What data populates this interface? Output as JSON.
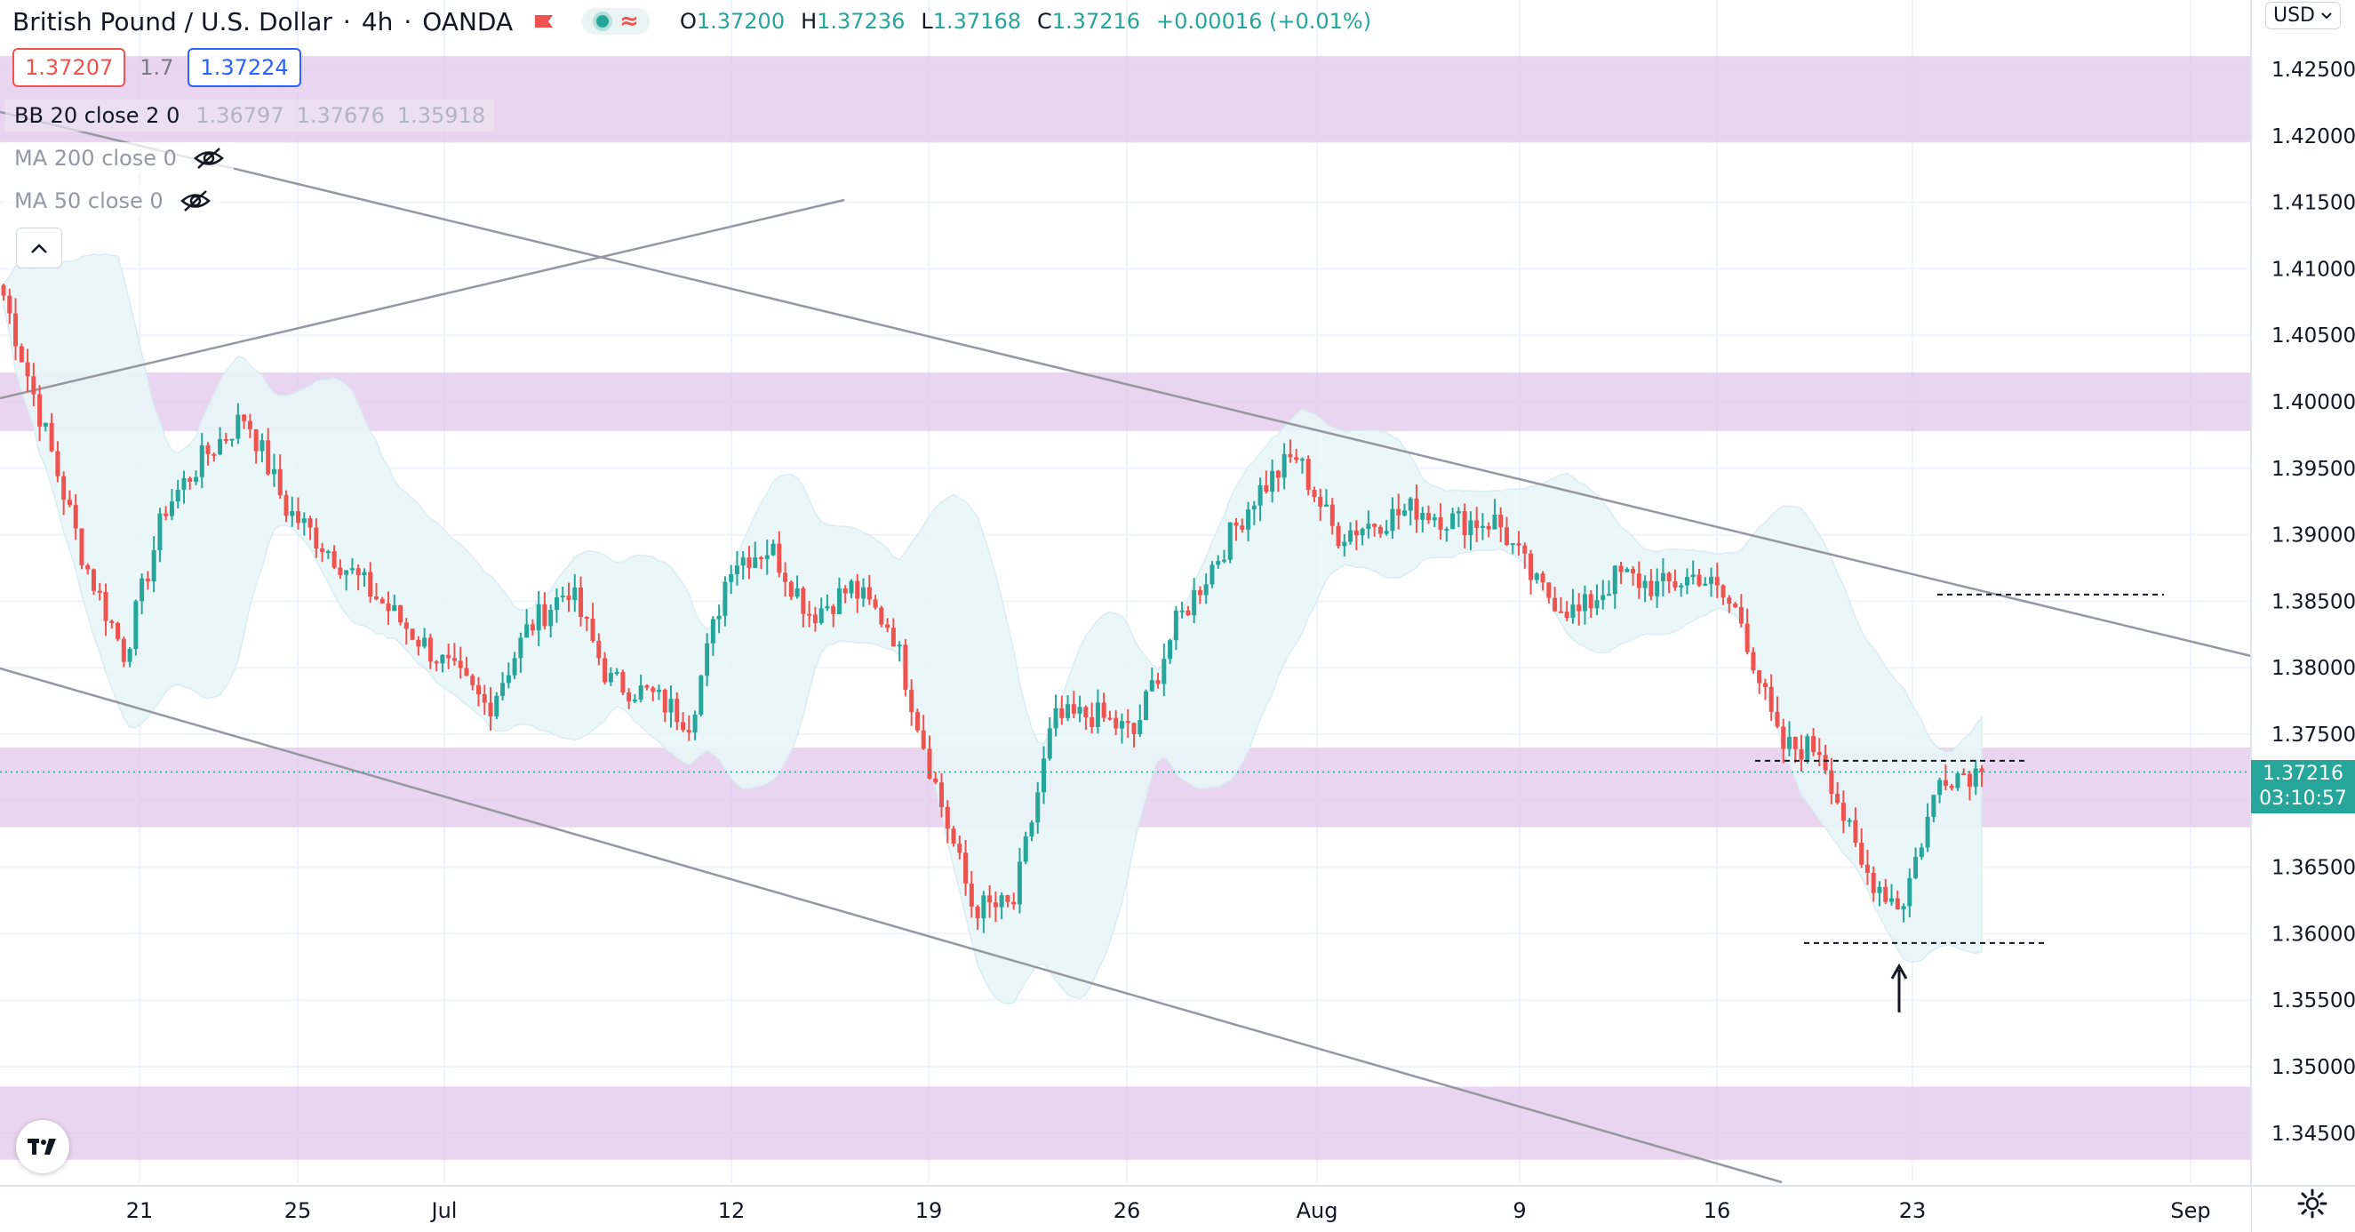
{
  "header": {
    "symbol_title": "British Pound / U.S. Dollar",
    "interval": "4h",
    "exchange": "OANDA",
    "ohlc": {
      "open_label": "O",
      "open": "1.37200",
      "high_label": "H",
      "high": "1.37236",
      "low_label": "L",
      "low": "1.37168",
      "close_label": "C",
      "close": "1.37216",
      "change": "+0.00016 (+0.01%)"
    }
  },
  "trade": {
    "sell_price": "1.37207",
    "spread": "1.7",
    "buy_price": "1.37224"
  },
  "indicators": {
    "bb": {
      "label": "BB 20 close 2 0",
      "values": [
        "1.36797",
        "1.37676",
        "1.35918"
      ]
    },
    "ma200": {
      "label": "MA 200 close 0"
    },
    "ma50": {
      "label": "MA 50 close 0"
    }
  },
  "currency_button": {
    "label": "USD",
    "icon": "chevron-down-icon"
  },
  "last_price": {
    "price": "1.37216",
    "countdown": "03:10:57"
  },
  "colors": {
    "up": "#26a69a",
    "down": "#ef5350",
    "zone": "#e1c7ea",
    "band": "#e9f6f8",
    "grid": "#f0f3fa",
    "trendline": "#9598a1"
  },
  "chart_data": {
    "type": "candlestick",
    "symbol": "British Pound / U.S. Dollar",
    "interval": "4h",
    "ylim": [
      1.3425,
      1.4265
    ],
    "y_ticks": [
      "1.34500",
      "1.35000",
      "1.35500",
      "1.36000",
      "1.36500",
      "1.37000",
      "1.37500",
      "1.38000",
      "1.38500",
      "1.39000",
      "1.39500",
      "1.40000",
      "1.40500",
      "1.41000",
      "1.41500",
      "1.42000",
      "1.42500"
    ],
    "x_ticks": [
      "21",
      "25",
      "Jul",
      "12",
      "19",
      "26",
      "Aug",
      "9",
      "16",
      "23",
      "Sep"
    ],
    "candles_close_path": [
      {
        "date": "Jun 17",
        "close": 1.408
      },
      {
        "date": "Jun 18",
        "close": 1.398
      },
      {
        "date": "Jun 19",
        "close": 1.388
      },
      {
        "date": "Jun 21",
        "close": 1.381
      },
      {
        "date": "Jun 22",
        "close": 1.392
      },
      {
        "date": "Jun 23",
        "close": 1.396
      },
      {
        "date": "Jun 24",
        "close": 1.399
      },
      {
        "date": "Jun 25",
        "close": 1.392
      },
      {
        "date": "Jun 28",
        "close": 1.389
      },
      {
        "date": "Jun 29",
        "close": 1.386
      },
      {
        "date": "Jun 30",
        "close": 1.383
      },
      {
        "date": "Jul 1",
        "close": 1.38
      },
      {
        "date": "Jul 2",
        "close": 1.377
      },
      {
        "date": "Jul 5",
        "close": 1.383
      },
      {
        "date": "Jul 6",
        "close": 1.386
      },
      {
        "date": "Jul 7",
        "close": 1.379
      },
      {
        "date": "Jul 8",
        "close": 1.378
      },
      {
        "date": "Jul 9",
        "close": 1.376
      },
      {
        "date": "Jul 12",
        "close": 1.388
      },
      {
        "date": "Jul 13",
        "close": 1.389
      },
      {
        "date": "Jul 14",
        "close": 1.384
      },
      {
        "date": "Jul 15",
        "close": 1.386
      },
      {
        "date": "Jul 16",
        "close": 1.383
      },
      {
        "date": "Jul 19",
        "close": 1.372
      },
      {
        "date": "Jul 20",
        "close": 1.362
      },
      {
        "date": "Jul 21",
        "close": 1.362
      },
      {
        "date": "Jul 22",
        "close": 1.376
      },
      {
        "date": "Jul 23",
        "close": 1.3765
      },
      {
        "date": "Jul 26",
        "close": 1.375
      },
      {
        "date": "Jul 27",
        "close": 1.383
      },
      {
        "date": "Jul 28",
        "close": 1.388
      },
      {
        "date": "Jul 29",
        "close": 1.393
      },
      {
        "date": "Jul 30",
        "close": 1.396
      },
      {
        "date": "Aug 2",
        "close": 1.39
      },
      {
        "date": "Aug 3",
        "close": 1.391
      },
      {
        "date": "Aug 4",
        "close": 1.392
      },
      {
        "date": "Aug 5",
        "close": 1.391
      },
      {
        "date": "Aug 6",
        "close": 1.391
      },
      {
        "date": "Aug 9",
        "close": 1.386
      },
      {
        "date": "Aug 10",
        "close": 1.384
      },
      {
        "date": "Aug 11",
        "close": 1.387
      },
      {
        "date": "Aug 12",
        "close": 1.386
      },
      {
        "date": "Aug 13",
        "close": 1.387
      },
      {
        "date": "Aug 16",
        "close": 1.384
      },
      {
        "date": "Aug 17",
        "close": 1.374
      },
      {
        "date": "Aug 18",
        "close": 1.374
      },
      {
        "date": "Aug 19",
        "close": 1.365
      },
      {
        "date": "Aug 20",
        "close": 1.362
      },
      {
        "date": "Aug 23",
        "close": 1.372
      },
      {
        "date": "Aug 24",
        "close": 1.3722
      }
    ],
    "zones": [
      {
        "from": 1.4195,
        "to": 1.426
      },
      {
        "from": 1.3978,
        "to": 1.4022
      },
      {
        "from": 1.368,
        "to": 1.374
      },
      {
        "from": 1.343,
        "to": 1.3485
      }
    ],
    "horizontal_levels": [
      1.3855,
      1.3593,
      1.373
    ],
    "last_price": 1.37216
  }
}
